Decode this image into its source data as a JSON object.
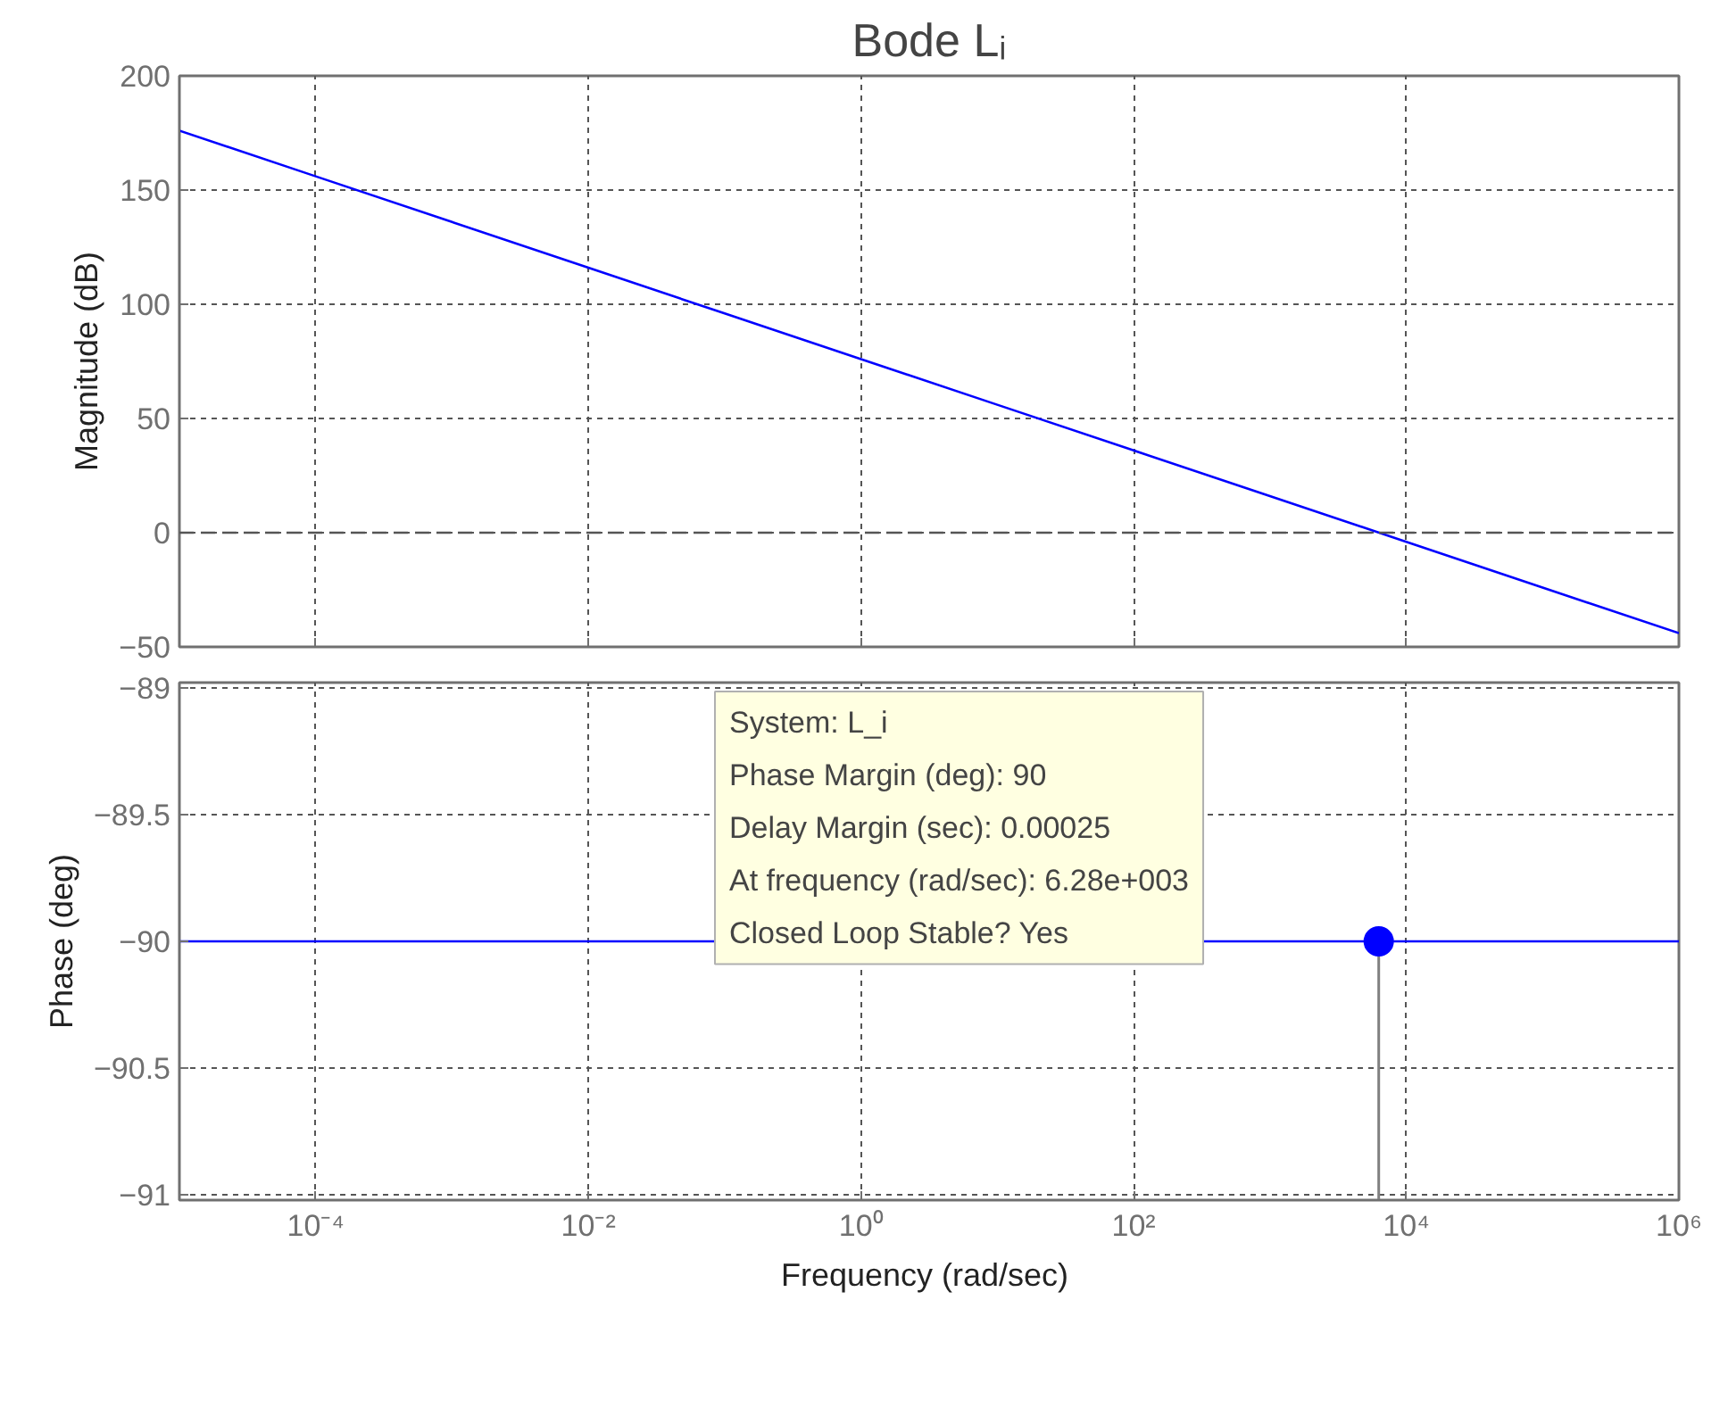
{
  "chart_data": [
    {
      "type": "line",
      "title": "Bode Lᵢ",
      "ylabel": "Magnitude (dB)",
      "log": "x",
      "grid": true,
      "tick_labels": "y",
      "xlim": [
        1e-05,
        1000000.0
      ],
      "xticks": [
        {
          "value": 0.0001,
          "label": null
        },
        {
          "value": 0.01,
          "label": null
        },
        {
          "value": 1,
          "label": null
        },
        {
          "value": 100,
          "label": null
        },
        {
          "value": 10000,
          "label": null
        },
        {
          "value": 1000000,
          "label": null
        }
      ],
      "ylim": [
        -50,
        200
      ],
      "yticks": [
        -50,
        0,
        50,
        100,
        150,
        200
      ],
      "ref_lines": [
        {
          "axis": "y",
          "value": 0,
          "line_style": "dashed",
          "color": "#555555"
        }
      ],
      "series": [
        {
          "color": "#0000ff",
          "x": [
            1e-05,
            0.0001,
            0.001,
            0.01,
            0.1,
            1,
            10,
            100,
            1000,
            10000,
            100000,
            1000000
          ],
          "values": [
            176,
            156,
            136,
            116,
            96,
            76,
            56,
            36,
            16,
            -4,
            -24,
            -44
          ]
        }
      ]
    },
    {
      "type": "line",
      "xlabel": "Frequency  (rad/sec)",
      "ylabel": "Phase (deg)",
      "log": "x",
      "grid": true,
      "xlim": [
        1e-05,
        1000000.0
      ],
      "xticks": [
        {
          "value": 0.0001,
          "label": "10⁻⁴"
        },
        {
          "value": 0.01,
          "label": "10⁻²"
        },
        {
          "value": 1,
          "label": "10⁰"
        },
        {
          "value": 100,
          "label": "10²"
        },
        {
          "value": 10000,
          "label": "10⁴"
        },
        {
          "value": 1000000,
          "label": "10⁶"
        }
      ],
      "ylim": [
        -91.02,
        -88.98
      ],
      "yticks": [
        -91,
        -90.5,
        -90,
        -89.5,
        -89
      ],
      "series": [
        {
          "color": "#0000ff",
          "x": [
            1e-05,
            1000000
          ],
          "values": [
            -90,
            -90
          ]
        },
        {
          "type": "scatter",
          "color": "#0000ff",
          "x": [
            6280
          ],
          "values": [
            -90
          ],
          "errors": [
            [
              -91.02,
              -90
            ]
          ]
        }
      ],
      "annotations": [
        "System: L_i\nPhase Margin (deg): 90\nDelay Margin (sec): 0.00025\nAt frequency (rad/sec): 6.28e+003\nClosed Loop Stable? Yes"
      ]
    }
  ]
}
